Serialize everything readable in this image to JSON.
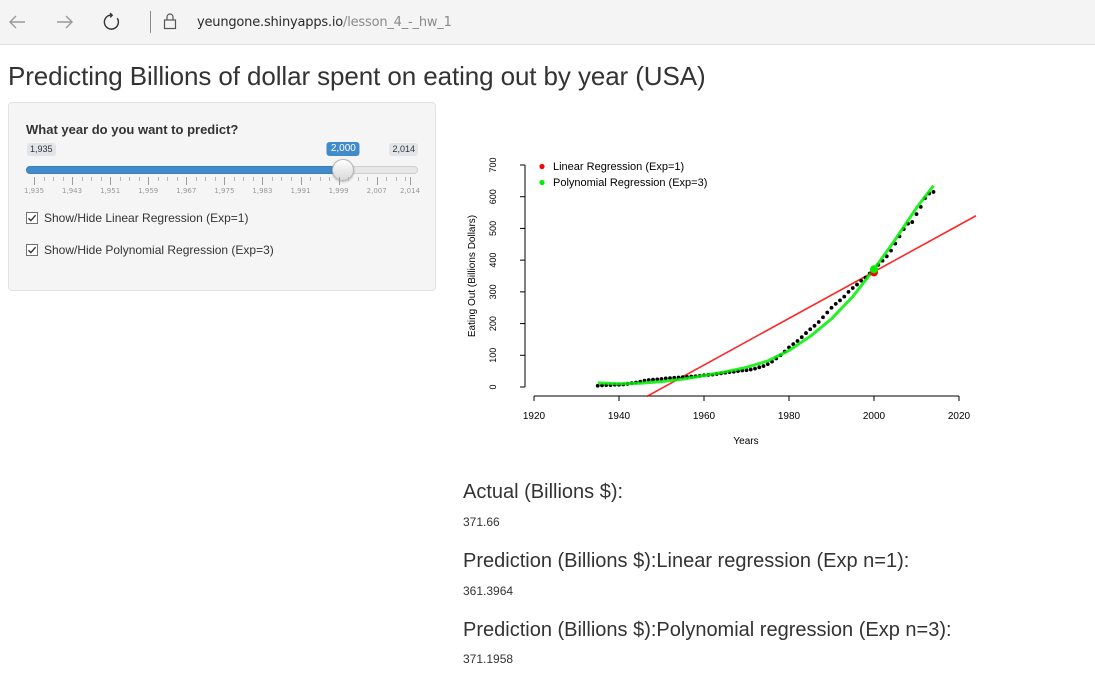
{
  "browser": {
    "url_host": "yeungone.shinyapps.io",
    "url_path": "/lesson_4_-_hw_1"
  },
  "page": {
    "title": "Predicting Billions of dollar spent on eating out by year (USA)"
  },
  "sidebar": {
    "slider_label": "What year do you want to predict?",
    "min_label": "1,935",
    "max_label": "2,014",
    "current_label": "2,000",
    "min": 1935,
    "max": 2014,
    "value": 2000,
    "tick_labels": [
      "1,935",
      "1,943",
      "1,951",
      "1,959",
      "1,967",
      "1,975",
      "1,983",
      "1,991",
      "1,999",
      "2,007",
      "2,014"
    ],
    "checkboxes": [
      {
        "label": "Show/Hide Linear Regression (Exp=1)",
        "checked": true
      },
      {
        "label": "Show/Hide Polynomial Regression (Exp=3)",
        "checked": true
      }
    ]
  },
  "chart_data": {
    "type": "scatter",
    "title": "",
    "xlabel": "Years",
    "ylabel": "Eating Out (Billions Dollars)",
    "xlim": [
      1920,
      2020
    ],
    "ylim": [
      0,
      700
    ],
    "x_ticks": [
      "1920",
      "1940",
      "1960",
      "1980",
      "2000",
      "2020"
    ],
    "y_ticks": [
      "0",
      "100",
      "200",
      "300",
      "400",
      "500",
      "600",
      "700"
    ],
    "legend_position": "top-left",
    "legend": [
      {
        "name": "Linear Regression (Exp=1)",
        "color": "#ff0000"
      },
      {
        "name": "Polynomial Regression (Exp=3)",
        "color": "#00ee00"
      }
    ],
    "series": [
      {
        "name": "Observed",
        "color": "#000000",
        "x": [
          1935,
          1936,
          1937,
          1938,
          1939,
          1940,
          1941,
          1942,
          1943,
          1944,
          1945,
          1946,
          1947,
          1948,
          1949,
          1950,
          1951,
          1952,
          1953,
          1954,
          1955,
          1956,
          1957,
          1958,
          1959,
          1960,
          1961,
          1962,
          1963,
          1964,
          1965,
          1966,
          1967,
          1968,
          1969,
          1970,
          1971,
          1972,
          1973,
          1974,
          1975,
          1976,
          1977,
          1978,
          1979,
          1980,
          1981,
          1982,
          1983,
          1984,
          1985,
          1986,
          1987,
          1988,
          1989,
          1990,
          1991,
          1992,
          1993,
          1994,
          1995,
          1996,
          1997,
          1998,
          1999,
          2000,
          2001,
          2002,
          2003,
          2004,
          2005,
          2006,
          2007,
          2008,
          2009,
          2010,
          2011,
          2012,
          2013,
          2014
        ],
        "y": [
          4,
          5,
          6,
          6,
          7,
          7,
          8,
          10,
          12,
          14,
          17,
          20,
          22,
          23,
          24,
          25,
          27,
          28,
          29,
          30,
          31,
          32,
          33,
          34,
          35,
          37,
          38,
          39,
          41,
          43,
          45,
          47,
          48,
          50,
          52,
          53,
          55,
          58,
          62,
          66,
          72,
          80,
          90,
          100,
          112,
          125,
          135,
          145,
          157,
          170,
          182,
          193,
          205,
          220,
          235,
          250,
          262,
          273,
          285,
          300,
          312,
          323,
          335,
          345,
          358,
          372,
          385,
          398,
          412,
          430,
          452,
          475,
          498,
          515,
          520,
          545,
          568,
          595,
          610,
          615
        ]
      },
      {
        "name": "Linear Regression (Exp=1)",
        "color": "#ff0000",
        "x": [
          1946.5,
          2024
        ],
        "y": [
          -30,
          540
        ]
      },
      {
        "name": "Polynomial Regression (Exp=3)",
        "color": "#00ee00",
        "x": [
          1935,
          1940,
          1945,
          1950,
          1955,
          1960,
          1965,
          1970,
          1975,
          1980,
          1985,
          1990,
          1995,
          2000,
          2005,
          2010,
          2014
        ],
        "y": [
          13,
          10,
          12,
          17,
          25,
          36,
          48,
          62,
          82,
          115,
          160,
          215,
          285,
          371,
          465,
          565,
          635
        ]
      }
    ],
    "highlight_points": [
      {
        "x": 2000,
        "y": 361.4,
        "color": "#ff0000"
      },
      {
        "x": 2000,
        "y": 371.2,
        "color": "#00ee00"
      }
    ]
  },
  "outputs": [
    {
      "heading": "Actual (Billions $):",
      "value": "371.66"
    },
    {
      "heading": "Prediction (Billions $):Linear regression (Exp n=1):",
      "value": "361.3964"
    },
    {
      "heading": "Prediction (Billions $):Polynomial regression (Exp n=3):",
      "value": "371.1958"
    }
  ]
}
